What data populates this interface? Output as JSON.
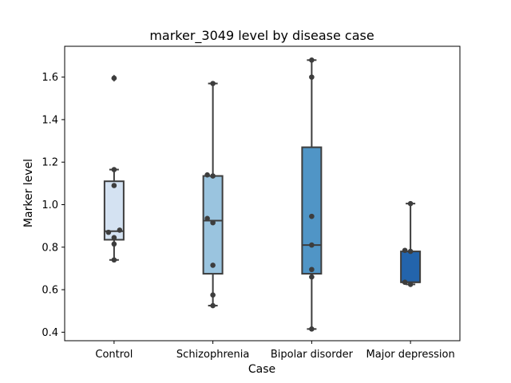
{
  "chart_data": {
    "type": "box",
    "title": "marker_3049 level by disease case",
    "xlabel": "Case",
    "ylabel": "Marker level",
    "ylim": [
      0.36,
      1.745
    ],
    "yticks": [
      0.4,
      0.6,
      0.8,
      1.0,
      1.2,
      1.4,
      1.6
    ],
    "ytick_labels": [
      "0.4",
      "0.6",
      "0.8",
      "1.0",
      "1.2",
      "1.4",
      "1.6"
    ],
    "grid": false,
    "categories": [
      "Control",
      "Schizophrenia",
      "Bipolar disorder",
      "Major depression"
    ],
    "boxes": [
      {
        "category": "Control",
        "color": "#d4e2f2",
        "whisker_low": 0.74,
        "q1": 0.835,
        "median": 0.875,
        "q3": 1.11,
        "whisker_high": 1.165,
        "fliers": [
          1.595
        ]
      },
      {
        "category": "Schizophrenia",
        "color": "#9ac4df",
        "whisker_low": 0.525,
        "q1": 0.675,
        "median": 0.925,
        "q3": 1.135,
        "whisker_high": 1.57,
        "fliers": []
      },
      {
        "category": "Bipolar disorder",
        "color": "#5095c6",
        "whisker_low": 0.415,
        "q1": 0.675,
        "median": 0.81,
        "q3": 1.27,
        "whisker_high": 1.68,
        "fliers": []
      },
      {
        "category": "Major depression",
        "color": "#2364ac",
        "whisker_low": 0.625,
        "q1": 0.635,
        "median": 0.635,
        "q3": 0.78,
        "whisker_high": 1.005,
        "fliers": []
      }
    ],
    "points": [
      {
        "category": "Control",
        "values": [
          1.595,
          1.165,
          1.09,
          0.88,
          0.87,
          0.845,
          0.815,
          0.74
        ]
      },
      {
        "category": "Schizophrenia",
        "values": [
          1.57,
          1.14,
          1.135,
          0.935,
          0.915,
          0.715,
          0.575,
          0.525
        ]
      },
      {
        "category": "Bipolar disorder",
        "values": [
          1.68,
          1.6,
          0.945,
          0.81,
          0.695,
          0.66,
          0.415
        ]
      },
      {
        "category": "Major depression",
        "values": [
          1.005,
          0.785,
          0.78,
          0.635,
          0.625
        ]
      }
    ]
  }
}
